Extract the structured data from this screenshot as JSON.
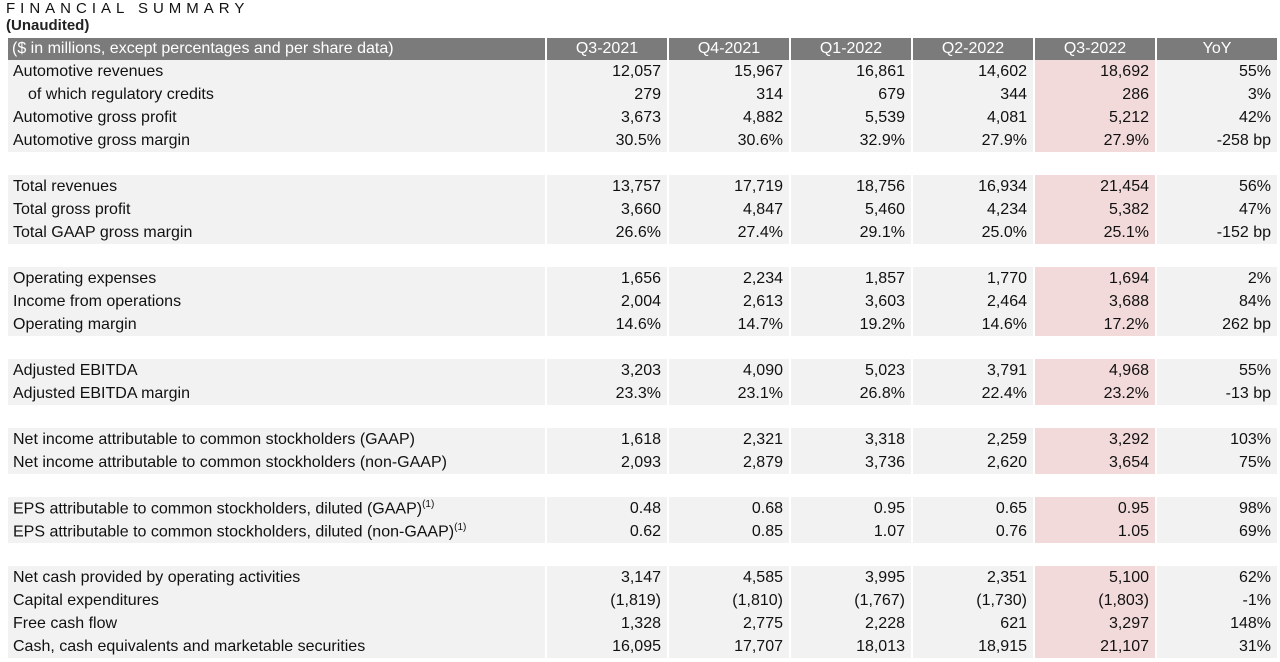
{
  "title": "FINANCIAL SUMMARY",
  "subtitle": "(Unaudited)",
  "header": {
    "label": "($ in millions, except percentages and per share data)",
    "columns": [
      "Q3-2021",
      "Q4-2021",
      "Q1-2022",
      "Q2-2022",
      "Q3-2022",
      "YoY"
    ]
  },
  "footnote_marker": "(1)",
  "highlight_color": "#f3dada",
  "header_color": "#7b7b7b",
  "rows": [
    {
      "label": "Automotive revenues",
      "values": [
        "12,057",
        "15,967",
        "16,861",
        "14,602",
        "18,692",
        "55%"
      ]
    },
    {
      "label": "of which regulatory credits",
      "values": [
        "279",
        "314",
        "679",
        "344",
        "286",
        "3%"
      ]
    },
    {
      "label": "Automotive gross profit",
      "values": [
        "3,673",
        "4,882",
        "5,539",
        "4,081",
        "5,212",
        "42%"
      ]
    },
    {
      "label": "Automotive gross margin",
      "values": [
        "30.5%",
        "30.6%",
        "32.9%",
        "27.9%",
        "27.9%",
        "-258 bp"
      ]
    },
    {
      "label": "Total revenues",
      "values": [
        "13,757",
        "17,719",
        "18,756",
        "16,934",
        "21,454",
        "56%"
      ]
    },
    {
      "label": "Total gross profit",
      "values": [
        "3,660",
        "4,847",
        "5,460",
        "4,234",
        "5,382",
        "47%"
      ]
    },
    {
      "label": "Total GAAP gross margin",
      "values": [
        "26.6%",
        "27.4%",
        "29.1%",
        "25.0%",
        "25.1%",
        "-152 bp"
      ]
    },
    {
      "label": "Operating expenses",
      "values": [
        "1,656",
        "2,234",
        "1,857",
        "1,770",
        "1,694",
        "2%"
      ]
    },
    {
      "label": "Income from operations",
      "values": [
        "2,004",
        "2,613",
        "3,603",
        "2,464",
        "3,688",
        "84%"
      ]
    },
    {
      "label": "Operating margin",
      "values": [
        "14.6%",
        "14.7%",
        "19.2%",
        "14.6%",
        "17.2%",
        "262 bp"
      ]
    },
    {
      "label": "Adjusted EBITDA",
      "values": [
        "3,203",
        "4,090",
        "5,023",
        "3,791",
        "4,968",
        "55%"
      ]
    },
    {
      "label": "Adjusted EBITDA margin",
      "values": [
        "23.3%",
        "23.1%",
        "26.8%",
        "22.4%",
        "23.2%",
        "-13 bp"
      ]
    },
    {
      "label": "Net income attributable to common stockholders (GAAP)",
      "values": [
        "1,618",
        "2,321",
        "3,318",
        "2,259",
        "3,292",
        "103%"
      ]
    },
    {
      "label": "Net income attributable to common stockholders (non-GAAP)",
      "values": [
        "2,093",
        "2,879",
        "3,736",
        "2,620",
        "3,654",
        "75%"
      ]
    },
    {
      "label": "EPS attributable to common stockholders, diluted (GAAP)",
      "values": [
        "0.48",
        "0.68",
        "0.95",
        "0.65",
        "0.95",
        "98%"
      ]
    },
    {
      "label": "EPS attributable to common stockholders, diluted (non-GAAP)",
      "values": [
        "0.62",
        "0.85",
        "1.07",
        "0.76",
        "1.05",
        "69%"
      ]
    },
    {
      "label": "Net cash provided by operating activities",
      "values": [
        "3,147",
        "4,585",
        "3,995",
        "2,351",
        "5,100",
        "62%"
      ]
    },
    {
      "label": "Capital expenditures",
      "values": [
        "(1,819)",
        "(1,810)",
        "(1,767)",
        "(1,730)",
        "(1,803)",
        "-1%"
      ]
    },
    {
      "label": "Free cash flow",
      "values": [
        "1,328",
        "2,775",
        "2,228",
        "621",
        "3,297",
        "148%"
      ]
    },
    {
      "label": "Cash, cash equivalents and marketable securities",
      "values": [
        "16,095",
        "17,707",
        "18,013",
        "18,915",
        "21,107",
        "31%"
      ]
    }
  ]
}
